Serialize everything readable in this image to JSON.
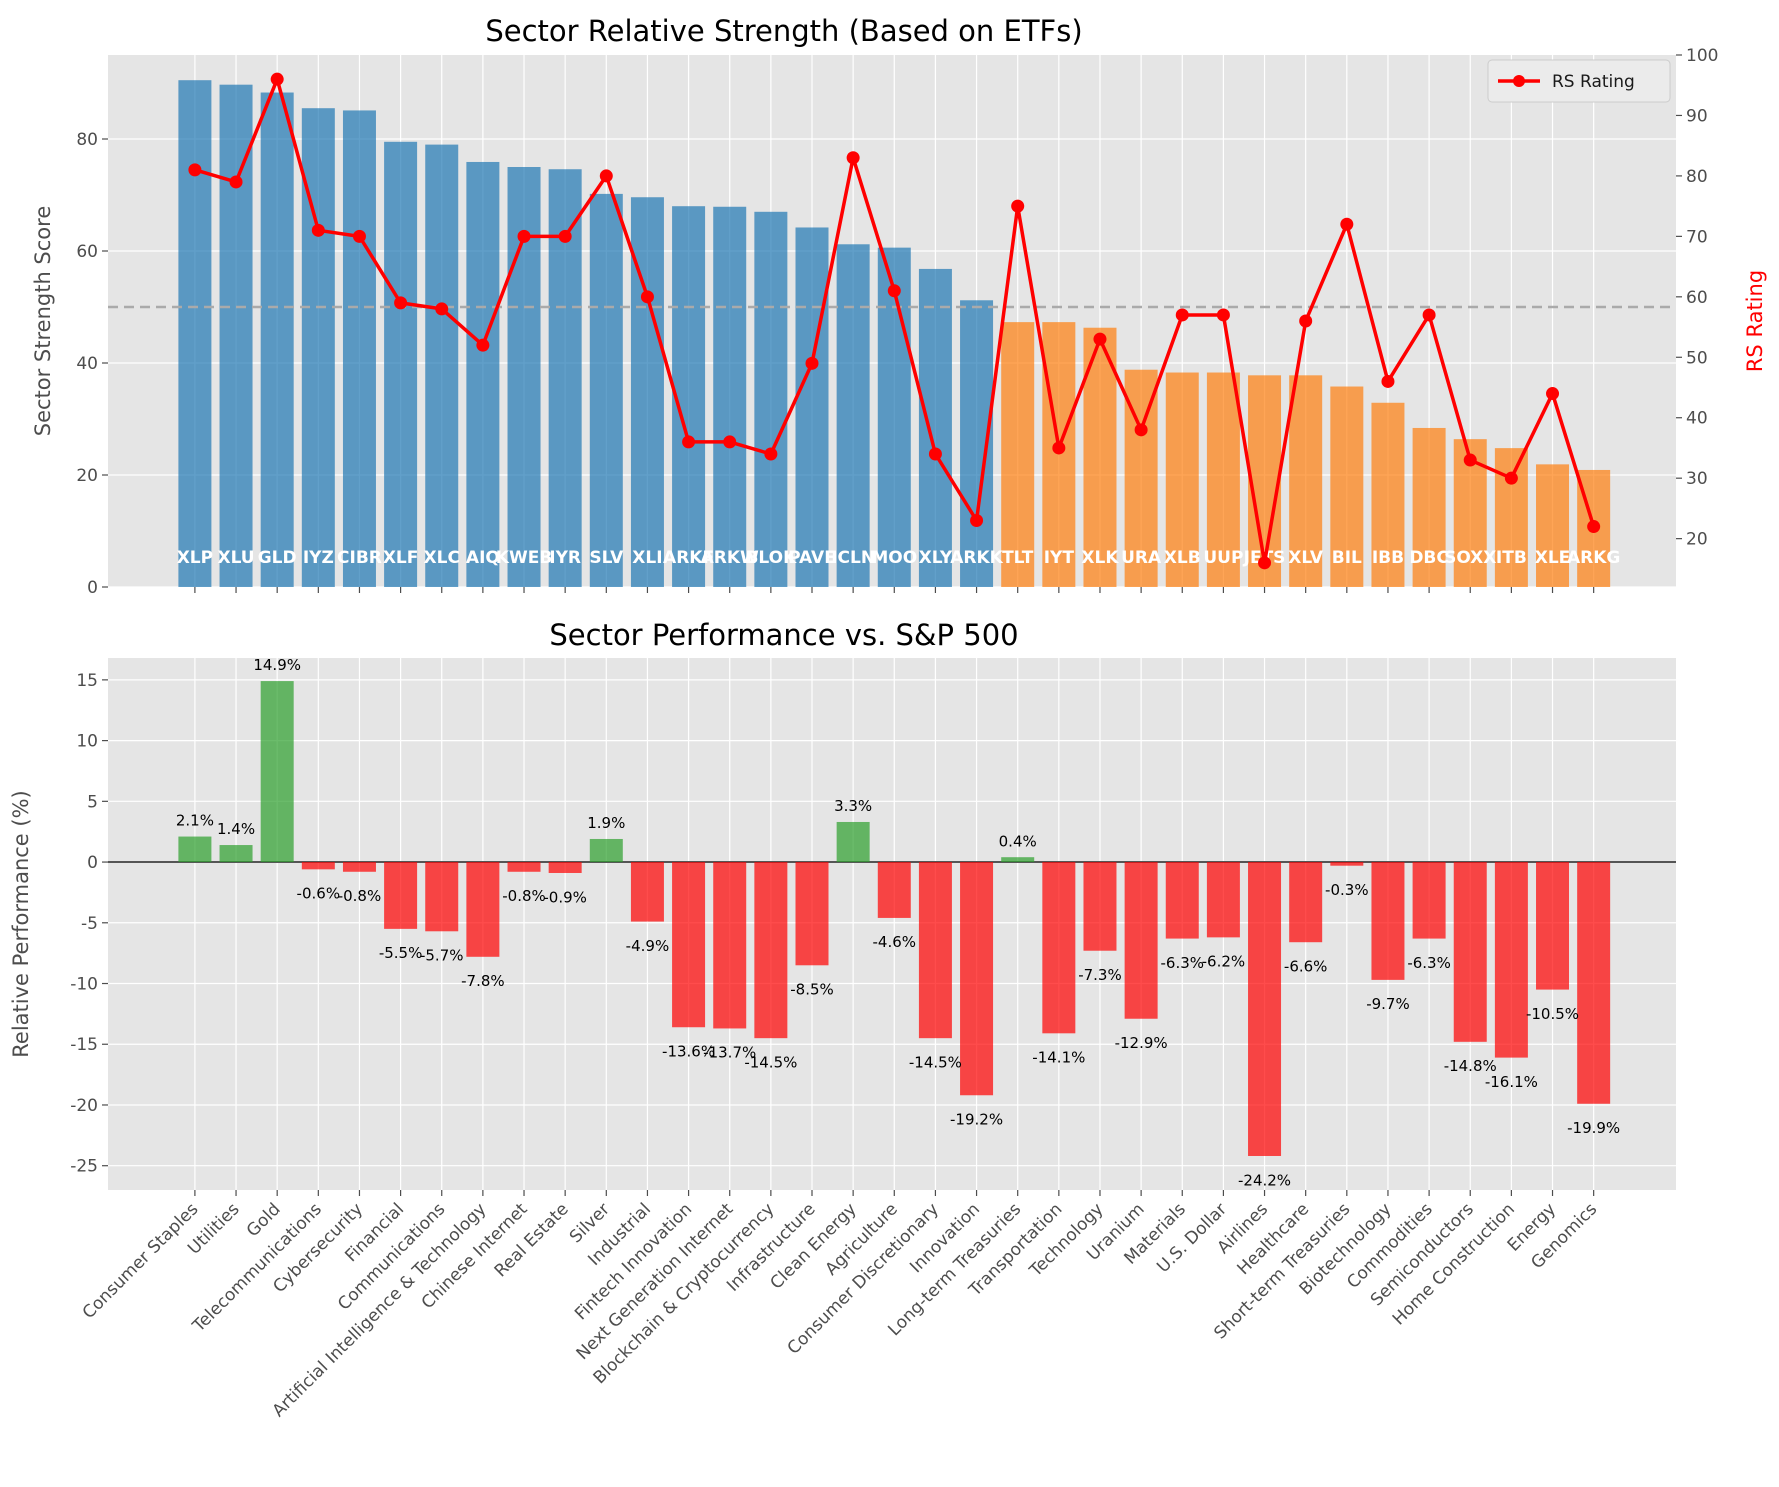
{
  "chart_data": [
    {
      "type": "bar",
      "title": "Sector Relative Strength (Based on ETFs)",
      "ylabel": "Sector Strength Score",
      "y2label": "RS Rating",
      "ylim": [
        0,
        95
      ],
      "y2lim": [
        12,
        100
      ],
      "yticks": [
        0,
        20,
        40,
        60,
        80
      ],
      "y2ticks": [
        20,
        30,
        40,
        50,
        60,
        70,
        80,
        90,
        100
      ],
      "threshold": 50,
      "grid": true,
      "legend_position": "top-right",
      "colors": {
        "strong": "#1f77b4",
        "weak": "#ff7f0e",
        "rs_line": "#ff0000",
        "threshold": "#aaaaaa"
      },
      "tickers": [
        "XLP",
        "XLU",
        "GLD",
        "IYZ",
        "CIBR",
        "XLF",
        "XLC",
        "AIQ",
        "KWEB",
        "IYR",
        "SLV",
        "XLI",
        "ARKF",
        "ARKW",
        "BLOK",
        "PAVE",
        "ICLN",
        "MOO",
        "XLY",
        "ARKK",
        "TLT",
        "IYT",
        "XLK",
        "URA",
        "XLB",
        "UUP",
        "JETS",
        "XLV",
        "BIL",
        "IBB",
        "DBC",
        "SOXX",
        "ITB",
        "XLE",
        "ARKG"
      ],
      "values": [
        90.5,
        89.7,
        88.3,
        85.5,
        85.1,
        79.5,
        79.0,
        75.9,
        75.0,
        74.6,
        70.2,
        69.6,
        68.0,
        67.9,
        67.0,
        64.2,
        61.2,
        60.6,
        56.8,
        51.2,
        47.3,
        47.3,
        46.3,
        38.8,
        38.3,
        38.3,
        37.8,
        37.8,
        35.8,
        32.9,
        28.4,
        26.4,
        24.8,
        21.9,
        20.9
      ],
      "series": [
        {
          "name": "RS Rating",
          "values": [
            81,
            79,
            96,
            71,
            70,
            59,
            58,
            52,
            70,
            70,
            80,
            60,
            36,
            36,
            34,
            49,
            83,
            61,
            34,
            23,
            75,
            35,
            53,
            38,
            57,
            57,
            16,
            56,
            72,
            46,
            57,
            33,
            30,
            44,
            22
          ]
        }
      ]
    },
    {
      "type": "bar",
      "title": "Sector Performance vs. S&P 500",
      "ylabel": "Relative Performance (%)",
      "ylim": [
        -27,
        16.8
      ],
      "yticks": [
        -25,
        -20,
        -15,
        -10,
        -5,
        0,
        5,
        10,
        15
      ],
      "grid": true,
      "colors": {
        "positive": "#2ca02c",
        "negative": "#ff0000",
        "zero_line": "#555555"
      },
      "categories": [
        "Consumer Staples",
        "Utilities",
        "Gold",
        "Telecommunications",
        "Cybersecurity",
        "Financial",
        "Communications",
        "Artificial Intelligence & Technology",
        "Chinese Internet",
        "Real Estate",
        "Silver",
        "Industrial",
        "Fintech Innovation",
        "Next Generation Internet",
        "Blockchain & Cryptocurrency",
        "Infrastructure",
        "Clean Energy",
        "Agriculture",
        "Consumer Discretionary",
        "Innovation",
        "Long-term Treasuries",
        "Transportation",
        "Technology",
        "Uranium",
        "Materials",
        "U.S. Dollar",
        "Airlines",
        "Healthcare",
        "Short-term Treasuries",
        "Biotechnology",
        "Commodities",
        "Semiconductors",
        "Home Construction",
        "Energy",
        "Genomics"
      ],
      "values": [
        2.1,
        1.4,
        14.9,
        -0.6,
        -0.8,
        -5.5,
        -5.7,
        -7.8,
        -0.8,
        -0.9,
        1.9,
        -4.9,
        -13.6,
        -13.7,
        -14.5,
        -8.5,
        3.3,
        -4.6,
        -14.5,
        -19.2,
        0.4,
        -14.1,
        -7.3,
        -12.9,
        -6.3,
        -6.2,
        -24.2,
        -6.6,
        -0.3,
        -9.7,
        -6.3,
        -14.8,
        -16.1,
        -10.5,
        -19.9
      ],
      "labels": [
        "2.1%",
        "1.4%",
        "14.9%",
        "-0.6%",
        "-0.8%",
        "-5.5%",
        "-5.7%",
        "-7.8%",
        "-0.8%",
        "-0.9%",
        "1.9%",
        "-4.9%",
        "-13.6%",
        "-13.7%",
        "-14.5%",
        "-8.5%",
        "3.3%",
        "-4.6%",
        "-14.5%",
        "-19.2%",
        "0.4%",
        "-14.1%",
        "-7.3%",
        "-12.9%",
        "-6.3%",
        "-6.2%",
        "-24.2%",
        "-6.6%",
        "-0.3%",
        "-9.7%",
        "-6.3%",
        "-14.8%",
        "-16.1%",
        "-10.5%",
        "-19.9%"
      ]
    }
  ]
}
